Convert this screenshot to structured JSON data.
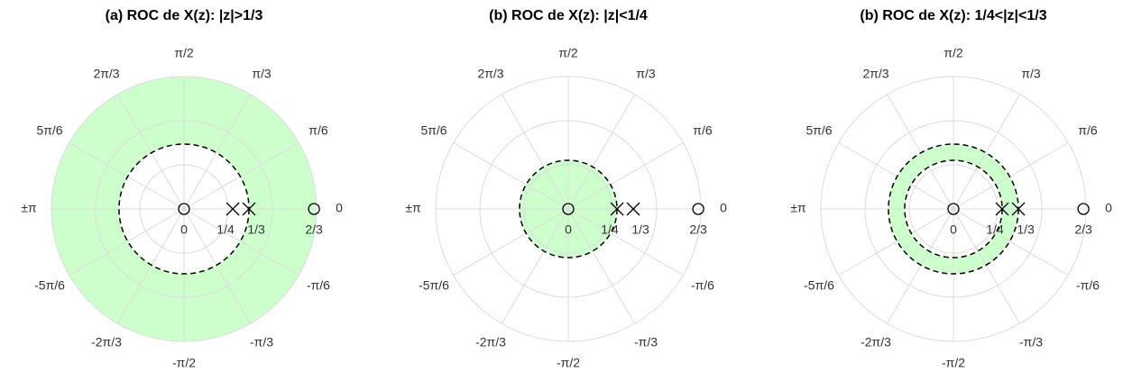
{
  "chart_data": [
    {
      "type": "polar",
      "title": "(a) ROC de X(z): |z|>1/3",
      "rlim": [
        0,
        0.68
      ],
      "thetaticks": [
        0,
        {
          "value": 30,
          "label": "π/6"
        },
        {
          "value": 60,
          "label": "π/3"
        },
        {
          "value": 90,
          "label": "π/2"
        },
        {
          "value": 120,
          "label": "2π/3"
        },
        {
          "value": 150,
          "label": "5π/6"
        },
        {
          "value": 180,
          "label": "±π"
        },
        {
          "value": -150,
          "label": "-5π/6"
        },
        {
          "value": -120,
          "label": "-2π/3"
        },
        {
          "value": -90,
          "label": "-π/2"
        },
        {
          "value": -60,
          "label": "-π/3"
        },
        {
          "value": -30,
          "label": "-π/6"
        }
      ],
      "zeros": [
        0,
        0.6667
      ],
      "zero_labels": [
        "0",
        "2/3"
      ],
      "poles": [
        0.25,
        0.3333
      ],
      "pole_labels": [
        "1/4",
        "1/3"
      ],
      "roc": [
        0.3333,
        null
      ],
      "color": "#ccffcc"
    },
    {
      "type": "polar",
      "title": "(b) ROC de X(z): |z|<1/4",
      "rlim": [
        0,
        0.68
      ],
      "thetaticks": [
        0,
        {
          "value": 30,
          "label": "π/6"
        },
        {
          "value": 60,
          "label": "π/3"
        },
        {
          "value": 90,
          "label": "π/2"
        },
        {
          "value": 120,
          "label": "2π/3"
        },
        {
          "value": 150,
          "label": "5π/6"
        },
        {
          "value": 180,
          "label": "±π"
        },
        {
          "value": -150,
          "label": "-5π/6"
        },
        {
          "value": -120,
          "label": "-2π/3"
        },
        {
          "value": -90,
          "label": "-π/2"
        },
        {
          "value": -60,
          "label": "-π/3"
        },
        {
          "value": -30,
          "label": "-π/6"
        }
      ],
      "zeros": [
        0,
        0.6667
      ],
      "zero_labels": [
        "0",
        "2/3"
      ],
      "poles": [
        0.25,
        0.3333
      ],
      "pole_labels": [
        "1/4",
        "1/3"
      ],
      "roc": [
        null,
        0.25
      ],
      "color": "#ccffcc"
    },
    {
      "type": "polar",
      "title": "(b) ROC de X(z): 1/4<|z|<1/3",
      "rlim": [
        0,
        0.68
      ],
      "thetaticks": [
        0,
        {
          "value": 30,
          "label": "π/6"
        },
        {
          "value": 60,
          "label": "π/3"
        },
        {
          "value": 90,
          "label": "π/2"
        },
        {
          "value": 120,
          "label": "2π/3"
        },
        {
          "value": 150,
          "label": "5π/6"
        },
        {
          "value": 180,
          "label": "±π"
        },
        {
          "value": -150,
          "label": "-5π/6"
        },
        {
          "value": -120,
          "label": "-2π/3"
        },
        {
          "value": -90,
          "label": "-π/2"
        },
        {
          "value": -60,
          "label": "-π/3"
        },
        {
          "value": -30,
          "label": "-π/6"
        }
      ],
      "zeros": [
        0,
        0.6667
      ],
      "zero_labels": [
        "0",
        "2/3"
      ],
      "poles": [
        0.25,
        0.3333
      ],
      "pole_labels": [
        "1/4",
        "1/3"
      ],
      "roc": [
        0.25,
        0.3333
      ],
      "color": "#ccffcc"
    }
  ]
}
